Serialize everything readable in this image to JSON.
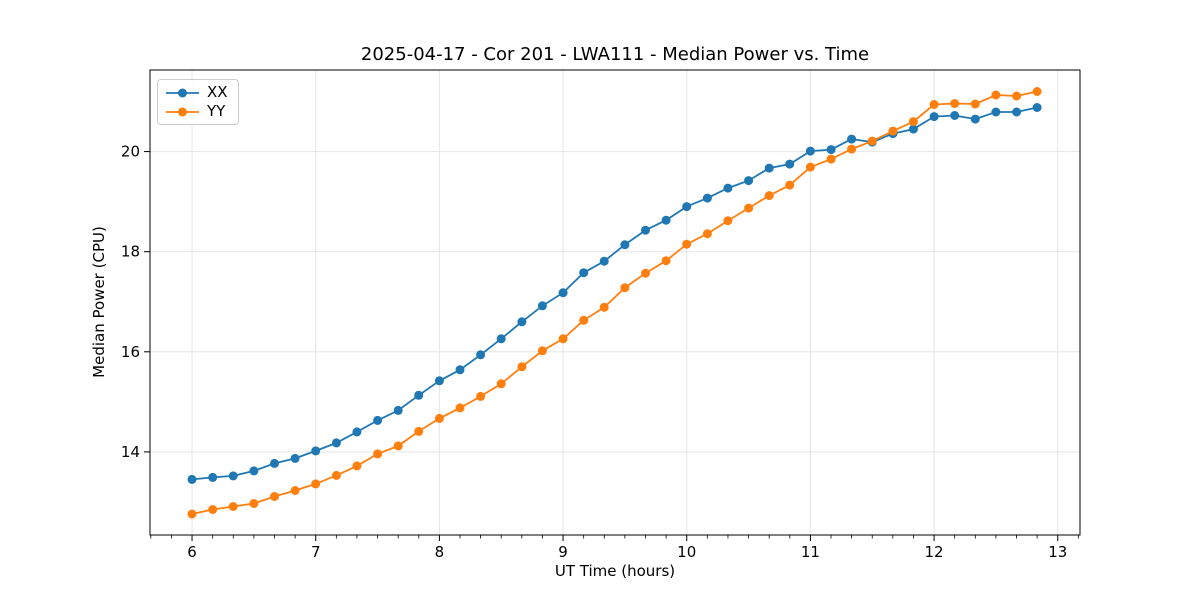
{
  "figure": {
    "title": "2025-04-17 - Cor 201 - LWA111 - Median Power vs. Time",
    "xlabel": "UT Time (hours)",
    "ylabel": "Median Power (CPU)"
  },
  "legend": {
    "position": "upper left",
    "items": [
      {
        "label": "XX",
        "color": "#1f77b4"
      },
      {
        "label": "YY",
        "color": "#ff7f0e"
      }
    ]
  },
  "axes": {
    "x_tick_labels": [
      "6",
      "7",
      "8",
      "9",
      "10",
      "11",
      "12",
      "13"
    ],
    "x_ticks": [
      6,
      7,
      8,
      9,
      10,
      11,
      12,
      13
    ],
    "y_tick_labels": [
      "14",
      "16",
      "18",
      "20"
    ],
    "y_ticks": [
      14,
      16,
      18,
      20
    ],
    "x_minor_step": 0.16666667
  },
  "colors": {
    "series_xx": "#1f77b4",
    "series_yy": "#ff7f0e",
    "grid": "#e5e5e5",
    "spine": "#000000",
    "text": "#000000",
    "background": "#ffffff"
  },
  "chart_data": {
    "type": "line",
    "title": "2025-04-17 - Cor 201 - LWA111 - Median Power vs. Time",
    "xlabel": "UT Time (hours)",
    "ylabel": "Median Power (CPU)",
    "xlim": [
      5.66,
      13.18
    ],
    "ylim": [
      12.34,
      21.63
    ],
    "grid": true,
    "legend_position": "upper left",
    "marker": "circle",
    "x": [
      6.0,
      6.167,
      6.333,
      6.5,
      6.667,
      6.833,
      7.0,
      7.167,
      7.333,
      7.5,
      7.667,
      7.833,
      8.0,
      8.167,
      8.333,
      8.5,
      8.667,
      8.833,
      9.0,
      9.167,
      9.333,
      9.5,
      9.667,
      9.833,
      10.0,
      10.167,
      10.333,
      10.5,
      10.667,
      10.833,
      11.0,
      11.167,
      11.333,
      11.5,
      11.667,
      11.833,
      12.0,
      12.167,
      12.333,
      12.5,
      12.667,
      12.833
    ],
    "series": [
      {
        "name": "XX",
        "color": "#1f77b4",
        "values": [
          13.45,
          13.49,
          13.52,
          13.62,
          13.77,
          13.87,
          14.02,
          14.18,
          14.4,
          14.63,
          14.83,
          15.13,
          15.42,
          15.64,
          15.94,
          16.26,
          16.6,
          16.92,
          17.18,
          17.58,
          17.81,
          18.14,
          18.43,
          18.63,
          18.9,
          19.07,
          19.27,
          19.42,
          19.67,
          19.75,
          20.01,
          20.04,
          20.25,
          20.19,
          20.36,
          20.45,
          20.7,
          20.72,
          20.65,
          20.79,
          20.79,
          20.88
        ]
      },
      {
        "name": "YY",
        "color": "#ff7f0e",
        "values": [
          12.76,
          12.85,
          12.91,
          12.97,
          13.11,
          13.23,
          13.36,
          13.53,
          13.72,
          13.96,
          14.12,
          14.41,
          14.67,
          14.88,
          15.11,
          15.36,
          15.7,
          16.02,
          16.26,
          16.63,
          16.89,
          17.28,
          17.57,
          17.82,
          18.15,
          18.36,
          18.62,
          18.87,
          19.12,
          19.33,
          19.69,
          19.85,
          20.05,
          20.21,
          20.41,
          20.6,
          20.94,
          20.96,
          20.95,
          21.13,
          21.11,
          21.2
        ]
      }
    ]
  }
}
